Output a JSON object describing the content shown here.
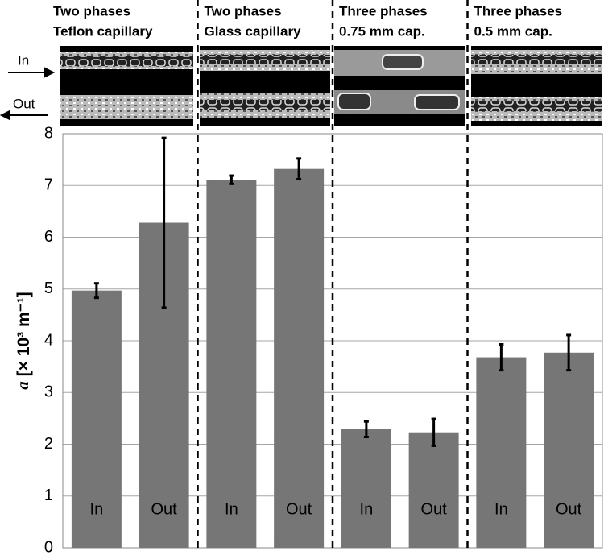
{
  "chart_data": {
    "type": "bar",
    "groups": [
      {
        "title": [
          "Two phases",
          "Teflon capillary"
        ]
      },
      {
        "title": [
          "Two phases",
          "Glass capillary"
        ]
      },
      {
        "title": [
          "Three phases",
          "0.75 mm cap."
        ]
      },
      {
        "title": [
          "Three phases",
          "0.5 mm cap."
        ]
      }
    ],
    "flow_labels": [
      "In",
      "Out"
    ],
    "categories": [
      "In",
      "Out",
      "In",
      "Out",
      "In",
      "Out",
      "In",
      "Out"
    ],
    "values": [
      4.97,
      6.28,
      7.11,
      7.32,
      2.29,
      2.23,
      3.68,
      3.77
    ],
    "errors": [
      0.14,
      1.64,
      0.08,
      0.2,
      0.15,
      0.26,
      0.25,
      0.34
    ],
    "color": "#767676",
    "ylabel": {
      "symbol": "a",
      "unit": "[× 10³ m⁻¹]"
    },
    "ylim": [
      0,
      8
    ],
    "yticks": [
      0,
      1,
      2,
      3,
      4,
      5,
      6,
      7,
      8
    ],
    "grid": true
  }
}
